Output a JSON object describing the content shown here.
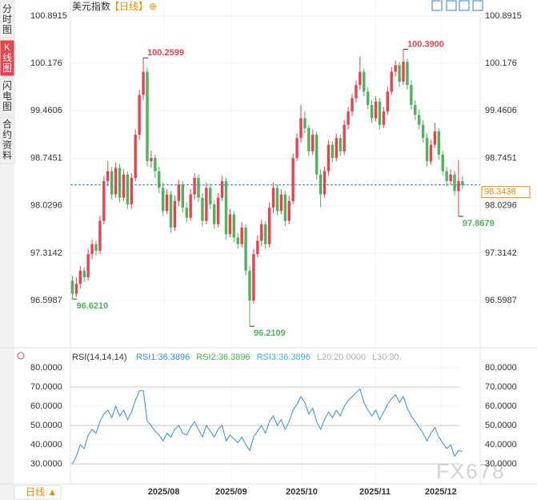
{
  "sidebar": {
    "tabs": [
      "分时图",
      "K线图",
      "闪电图",
      "合约资料"
    ],
    "active": "K线图"
  },
  "header": {
    "name": "美元指数",
    "period": "【日线】",
    "icon": "⊕"
  },
  "footer": {
    "period_button": "日线 ▲",
    "watermark": "FX678"
  },
  "chart_data": [
    {
      "type": "candlestick",
      "up_color": "#e8424e",
      "down_color": "#4fb35a",
      "xlim": [
        -0.5,
        103.5
      ],
      "xticks": [
        {
          "value": 23.2,
          "label": "2025/08"
        },
        {
          "value": 40.3,
          "label": "2025/09"
        },
        {
          "value": 58.2,
          "label": "2025/10"
        },
        {
          "value": 76.8,
          "label": "2025/11"
        },
        {
          "value": 93.5,
          "label": "2025/12"
        }
      ],
      "ylim": [
        95.935,
        101.036
      ],
      "yticks": [
        96.5987,
        97.3142,
        98.0296,
        98.7451,
        99.4606,
        100.176,
        100.8915
      ],
      "current_price": 98.3438,
      "annotations": [
        {
          "value": 100.2599,
          "label": "100.2599",
          "kind": "high"
        },
        {
          "value": 100.39,
          "label": "100.3900",
          "kind": "high"
        },
        {
          "value": 96.621,
          "label": "96.6210",
          "kind": "low"
        },
        {
          "value": 96.2109,
          "label": "96.2109",
          "kind": "low"
        },
        {
          "value": 97.8679,
          "label": "97.8679",
          "kind": "low"
        }
      ],
      "candles": [
        [
          96.9,
          96.98,
          96.621,
          96.7
        ],
        [
          96.7,
          96.95,
          96.65,
          96.85
        ],
        [
          96.85,
          97.12,
          96.78,
          97.05
        ],
        [
          97.05,
          97.1,
          96.88,
          96.95
        ],
        [
          96.95,
          97.38,
          96.9,
          97.3
        ],
        [
          97.3,
          97.52,
          97.22,
          97.45
        ],
        [
          97.45,
          97.5,
          97.28,
          97.35
        ],
        [
          97.35,
          97.88,
          97.3,
          97.8
        ],
        [
          97.8,
          98.48,
          97.75,
          98.4
        ],
        [
          98.4,
          98.7,
          98.32,
          98.55
        ],
        [
          98.55,
          98.62,
          98.12,
          98.2
        ],
        [
          98.2,
          98.68,
          98.15,
          98.6
        ],
        [
          98.6,
          98.66,
          98.08,
          98.15
        ],
        [
          98.15,
          98.58,
          98.1,
          98.5
        ],
        [
          98.5,
          98.55,
          97.98,
          98.05
        ],
        [
          98.05,
          98.52,
          97.98,
          98.45
        ],
        [
          98.45,
          99.18,
          98.4,
          99.1
        ],
        [
          99.1,
          99.78,
          99.02,
          99.7
        ],
        [
          99.7,
          100.2599,
          99.62,
          100.05
        ],
        [
          100.05,
          100.12,
          98.62,
          98.7
        ],
        [
          98.7,
          98.86,
          98.6,
          98.75
        ],
        [
          98.75,
          98.8,
          98.45,
          98.55
        ],
        [
          98.55,
          98.62,
          98.22,
          98.3
        ],
        [
          98.3,
          98.38,
          97.88,
          97.95
        ],
        [
          97.95,
          98.28,
          97.9,
          98.2
        ],
        [
          98.2,
          98.25,
          97.62,
          97.7
        ],
        [
          97.7,
          98.18,
          97.65,
          98.1
        ],
        [
          98.1,
          98.42,
          98.02,
          98.35
        ],
        [
          98.35,
          98.4,
          97.92,
          98.0
        ],
        [
          98.0,
          98.08,
          97.78,
          97.85
        ],
        [
          97.85,
          98.28,
          97.8,
          98.2
        ],
        [
          98.2,
          98.52,
          98.12,
          98.45
        ],
        [
          98.45,
          98.5,
          98.08,
          98.15
        ],
        [
          98.15,
          98.22,
          97.72,
          97.8
        ],
        [
          97.8,
          98.38,
          97.75,
          98.3
        ],
        [
          98.3,
          98.36,
          97.98,
          98.05
        ],
        [
          98.05,
          98.1,
          97.68,
          97.75
        ],
        [
          97.75,
          98.22,
          97.7,
          98.15
        ],
        [
          98.15,
          98.48,
          98.1,
          98.4
        ],
        [
          98.4,
          98.45,
          97.52,
          97.6
        ],
        [
          97.6,
          97.98,
          97.55,
          97.9
        ],
        [
          97.9,
          97.95,
          97.48,
          97.55
        ],
        [
          97.55,
          97.62,
          97.38,
          97.45
        ],
        [
          97.45,
          97.78,
          97.4,
          97.7
        ],
        [
          97.7,
          97.75,
          96.98,
          97.05
        ],
        [
          97.05,
          97.12,
          96.2109,
          96.6
        ],
        [
          96.6,
          97.38,
          96.55,
          97.3
        ],
        [
          97.3,
          97.58,
          97.25,
          97.5
        ],
        [
          97.5,
          97.82,
          97.42,
          97.75
        ],
        [
          97.75,
          97.8,
          97.38,
          97.45
        ],
        [
          97.45,
          98.08,
          97.4,
          98.0
        ],
        [
          98.0,
          98.38,
          97.92,
          98.3
        ],
        [
          98.3,
          98.35,
          97.88,
          97.95
        ],
        [
          97.95,
          98.28,
          97.9,
          98.2
        ],
        [
          98.2,
          98.26,
          97.72,
          97.8
        ],
        [
          97.8,
          98.18,
          97.75,
          98.1
        ],
        [
          98.1,
          98.82,
          98.05,
          98.75
        ],
        [
          98.75,
          99.12,
          98.7,
          99.05
        ],
        [
          99.05,
          99.55,
          98.98,
          99.35
        ],
        [
          99.35,
          99.45,
          99.12,
          99.2
        ],
        [
          99.2,
          99.25,
          98.78,
          98.85
        ],
        [
          98.85,
          99.18,
          98.8,
          99.1
        ],
        [
          99.1,
          99.15,
          98.42,
          98.5
        ],
        [
          98.5,
          98.58,
          98.0,
          98.2
        ],
        [
          98.2,
          98.62,
          98.15,
          98.55
        ],
        [
          98.55,
          99.02,
          98.48,
          98.95
        ],
        [
          98.95,
          99.0,
          98.68,
          98.75
        ],
        [
          98.75,
          99.12,
          98.7,
          99.05
        ],
        [
          99.05,
          99.1,
          98.78,
          98.85
        ],
        [
          98.85,
          99.32,
          98.8,
          99.25
        ],
        [
          99.25,
          99.52,
          99.18,
          99.45
        ],
        [
          99.45,
          99.72,
          99.38,
          99.65
        ],
        [
          99.65,
          99.92,
          99.58,
          99.85
        ],
        [
          99.85,
          100.28,
          99.78,
          100.05
        ],
        [
          100.05,
          100.1,
          99.68,
          99.75
        ],
        [
          99.75,
          99.82,
          99.48,
          99.55
        ],
        [
          99.55,
          99.62,
          99.28,
          99.35
        ],
        [
          99.35,
          99.68,
          99.3,
          99.6
        ],
        [
          99.6,
          99.65,
          99.18,
          99.25
        ],
        [
          99.25,
          99.52,
          99.2,
          99.45
        ],
        [
          99.45,
          99.82,
          99.4,
          99.75
        ],
        [
          99.75,
          100.12,
          99.7,
          100.05
        ],
        [
          100.05,
          100.22,
          99.98,
          100.15
        ],
        [
          100.15,
          100.2,
          99.82,
          99.9
        ],
        [
          99.9,
          100.39,
          99.85,
          100.2
        ],
        [
          100.2,
          100.25,
          99.78,
          99.85
        ],
        [
          99.85,
          99.92,
          99.48,
          99.55
        ],
        [
          99.55,
          99.62,
          99.32,
          99.4
        ],
        [
          99.4,
          99.48,
          99.18,
          99.25
        ],
        [
          99.25,
          99.32,
          98.98,
          99.05
        ],
        [
          99.05,
          99.12,
          98.62,
          98.7
        ],
        [
          98.7,
          99.02,
          98.65,
          98.95
        ],
        [
          98.95,
          99.28,
          98.9,
          99.15
        ],
        [
          99.15,
          99.2,
          98.72,
          98.8
        ],
        [
          98.8,
          98.86,
          98.48,
          98.55
        ],
        [
          98.55,
          98.62,
          98.32,
          98.4
        ],
        [
          98.4,
          98.58,
          98.35,
          98.5
        ],
        [
          98.5,
          98.56,
          98.18,
          98.25
        ],
        [
          98.25,
          98.72,
          97.8679,
          98.4
        ],
        [
          98.4,
          98.48,
          98.28,
          98.3438
        ]
      ]
    },
    {
      "type": "line",
      "title": "RSI(14,14,14)",
      "legend": [
        {
          "label": "RSI1:36.3896",
          "color": "#2f8fe0"
        },
        {
          "label": "RSI2:36.3896",
          "color": "#3cb64a"
        },
        {
          "label": "RSI3:36.3896",
          "color": "#3ab0e0"
        },
        {
          "label": "L20:20.0000",
          "color": "#b0b0b0"
        },
        {
          "label": "L30:30.",
          "color": "#b0b0b0"
        }
      ],
      "xlim": [
        -0.5,
        103.5
      ],
      "ylim": [
        21.25,
        83.75
      ],
      "yticks": [
        {
          "value": 30,
          "label": "30.0000"
        },
        {
          "value": 40,
          "label": "40.0000"
        },
        {
          "value": 50,
          "label": "50.0000"
        },
        {
          "value": 60,
          "label": "60.0000"
        },
        {
          "value": 70,
          "label": "70.0000"
        },
        {
          "value": 80,
          "label": "80.0000"
        }
      ],
      "series": [
        {
          "name": "RSI1",
          "color": "#2f8fe0",
          "values": [
            30,
            34,
            40,
            38,
            45,
            48,
            46,
            52,
            56,
            58,
            54,
            60,
            55,
            58,
            53,
            57,
            63,
            68,
            68,
            52,
            50,
            47,
            45,
            42,
            46,
            44,
            48,
            50,
            46,
            45,
            49,
            52,
            48,
            44,
            50,
            47,
            44,
            48,
            50,
            42,
            45,
            43,
            41,
            44,
            40,
            37,
            44,
            47,
            50,
            46,
            52,
            55,
            50,
            53,
            48,
            52,
            58,
            61,
            65,
            62,
            56,
            59,
            52,
            48,
            53,
            57,
            54,
            58,
            55,
            60,
            63,
            65,
            67,
            69,
            62,
            58,
            55,
            58,
            53,
            57,
            61,
            64,
            66,
            62,
            65,
            59,
            55,
            52,
            49,
            46,
            42,
            46,
            49,
            44,
            41,
            38,
            40,
            34,
            37,
            36.3896
          ]
        }
      ]
    }
  ]
}
